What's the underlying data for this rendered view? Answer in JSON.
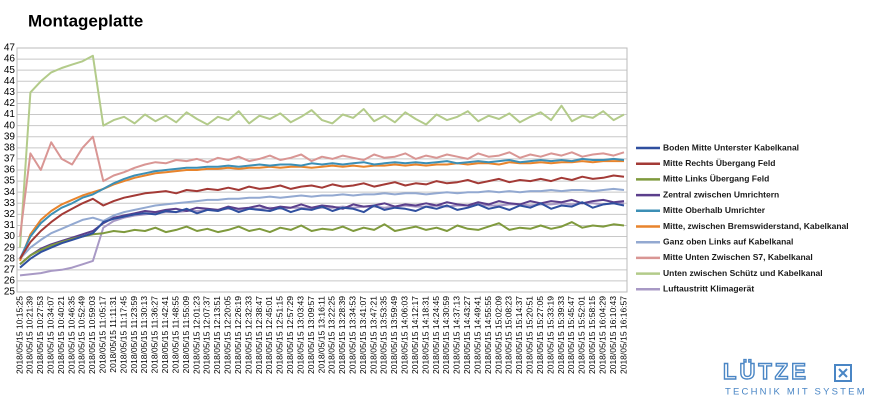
{
  "chart_data": {
    "type": "line",
    "title": "Montageplatte",
    "categories": [
      "2018/05/15 10:15:25",
      "2018/05/15 10:21:39",
      "2018/05/15 10:27:53",
      "2018/05/15 10:34:07",
      "2018/05/15 10:40:21",
      "2018/05/15 10:46:35",
      "2018/05/15 10:52:49",
      "2018/05/15 10:59:03",
      "2018/05/15 11:05:17",
      "2018/05/15 11:11:31",
      "2018/05/15 11:17:45",
      "2018/05/15 11:23:59",
      "2018/05/15 11:30:13",
      "2018/05/15 11:36:27",
      "2018/05/15 11:42:41",
      "2018/05/15 11:48:55",
      "2018/05/15 11:55:09",
      "2018/05/15 12:01:23",
      "2018/05/15 12:07:37",
      "2018/05/15 12:13:51",
      "2018/05/15 12:20:05",
      "2018/05/15 12:26:19",
      "2018/05/15 12:32:33",
      "2018/05/15 12:38:47",
      "2018/05/15 12:45:01",
      "2018/05/15 12:51:15",
      "2018/05/15 12:57:29",
      "2018/05/15 13:03:43",
      "2018/05/15 13:09:57",
      "2018/05/15 13:16:11",
      "2018/05/15 13:22:25",
      "2018/05/15 13:28:39",
      "2018/05/15 13:34:53",
      "2018/05/15 13:41:07",
      "2018/05/15 13:47:21",
      "2018/05/15 13:53:35",
      "2018/05/15 13:59:49",
      "2018/05/15 14:06:03",
      "2018/05/15 14:12:17",
      "2018/05/15 14:18:31",
      "2018/05/15 14:24:45",
      "2018/05/15 14:30:59",
      "2018/05/15 14:37:13",
      "2018/05/15 14:43:27",
      "2018/05/15 14:49:41",
      "2018/05/15 14:55:55",
      "2018/05/15 15:02:09",
      "2018/05/15 15:08:23",
      "2018/05/15 15:14:37",
      "2018/05/15 15:20:51",
      "2018/05/15 15:27:05",
      "2018/05/15 15:33:19",
      "2018/05/15 15:39:33",
      "2018/05/15 15:45:47",
      "2018/05/15 15:52:01",
      "2018/05/15 15:58:15",
      "2018/05/15 16:04:29",
      "2018/05/15 16:10:43",
      "2018/05/15 16:16:57"
    ],
    "series": [
      {
        "name": "Boden Mitte Unterster Kabelkanal",
        "color": "#2f4f9f",
        "values": [
          27.2,
          28.0,
          28.6,
          29.0,
          29.4,
          29.7,
          30.0,
          30.3,
          31.3,
          31.6,
          31.8,
          32.0,
          32.1,
          32.0,
          32.3,
          32.2,
          32.5,
          32.1,
          32.4,
          32.3,
          32.6,
          32.2,
          32.5,
          32.4,
          32.3,
          32.6,
          32.2,
          32.5,
          32.4,
          32.7,
          32.3,
          32.6,
          32.5,
          32.2,
          32.8,
          32.4,
          32.6,
          32.5,
          32.3,
          32.7,
          32.5,
          32.8,
          32.4,
          32.6,
          32.9,
          32.5,
          32.7,
          32.4,
          32.8,
          32.6,
          33.0,
          32.5,
          32.8,
          32.7,
          33.1,
          32.6,
          32.9,
          33.0,
          32.8
        ]
      },
      {
        "name": "Mitte Rechts Übergang  Feld",
        "color": "#a33a36",
        "values": [
          28.0,
          29.5,
          30.5,
          31.3,
          32.0,
          32.5,
          33.0,
          33.4,
          32.8,
          33.2,
          33.5,
          33.7,
          33.9,
          34.0,
          34.1,
          33.9,
          34.2,
          34.1,
          34.3,
          34.2,
          34.4,
          34.2,
          34.5,
          34.3,
          34.4,
          34.6,
          34.3,
          34.5,
          34.6,
          34.4,
          34.7,
          34.5,
          34.6,
          34.8,
          34.5,
          34.7,
          34.9,
          34.6,
          34.8,
          34.7,
          35.0,
          34.8,
          34.9,
          35.1,
          34.8,
          35.0,
          35.2,
          34.9,
          35.1,
          35.0,
          35.2,
          35.0,
          35.3,
          35.1,
          35.4,
          35.2,
          35.3,
          35.5,
          35.4
        ]
      },
      {
        "name": "Mitte Links Übergang Feld",
        "color": "#7f9a3d",
        "values": [
          27.5,
          28.3,
          28.8,
          29.2,
          29.5,
          29.8,
          30.0,
          30.2,
          30.3,
          30.5,
          30.4,
          30.6,
          30.5,
          30.8,
          30.4,
          30.6,
          30.9,
          30.5,
          30.7,
          30.4,
          30.6,
          30.9,
          30.5,
          30.7,
          30.4,
          30.8,
          30.6,
          31.0,
          30.5,
          30.7,
          30.6,
          30.9,
          30.5,
          30.8,
          30.6,
          31.1,
          30.5,
          30.7,
          30.9,
          30.6,
          30.8,
          30.5,
          31.0,
          30.7,
          30.6,
          30.9,
          31.2,
          30.6,
          30.8,
          30.7,
          31.0,
          30.7,
          30.9,
          31.3,
          30.8,
          31.0,
          30.9,
          31.1,
          31.0
        ]
      },
      {
        "name": "Zentral zwischen Umrichtern",
        "color": "#5b3f8c",
        "values": [
          27.5,
          28.3,
          28.9,
          29.3,
          29.6,
          29.9,
          30.2,
          30.5,
          31.2,
          31.7,
          31.9,
          32.1,
          32.3,
          32.2,
          32.4,
          32.5,
          32.3,
          32.6,
          32.5,
          32.4,
          32.7,
          32.5,
          32.6,
          32.8,
          32.5,
          32.7,
          32.6,
          32.9,
          32.6,
          32.8,
          32.7,
          32.5,
          32.9,
          32.7,
          32.8,
          33.0,
          32.7,
          32.9,
          32.8,
          33.0,
          32.8,
          33.1,
          32.9,
          32.8,
          33.1,
          32.9,
          33.2,
          33.0,
          32.9,
          33.2,
          33.0,
          33.2,
          33.1,
          33.3,
          33.0,
          33.2,
          33.3,
          33.1,
          33.2
        ]
      },
      {
        "name": "Mitte Oberhalb Umrichter",
        "color": "#3c8fb5",
        "values": [
          28.0,
          30.0,
          31.2,
          32.0,
          32.6,
          33.0,
          33.5,
          33.8,
          34.3,
          34.8,
          35.2,
          35.5,
          35.7,
          35.9,
          36.0,
          36.1,
          36.2,
          36.2,
          36.3,
          36.3,
          36.4,
          36.3,
          36.4,
          36.5,
          36.4,
          36.5,
          36.5,
          36.4,
          36.6,
          36.5,
          36.6,
          36.5,
          36.6,
          36.7,
          36.5,
          36.6,
          36.7,
          36.6,
          36.7,
          36.6,
          36.7,
          36.8,
          36.6,
          36.7,
          36.8,
          36.7,
          36.8,
          36.9,
          36.7,
          36.8,
          36.9,
          36.8,
          36.9,
          36.8,
          37.0,
          36.9,
          36.9,
          37.0,
          36.9
        ]
      },
      {
        "name": "Mitte, zwischen Bremswiderstand, Kabelkanal",
        "color": "#e8842c",
        "values": [
          27.8,
          30.2,
          31.5,
          32.3,
          32.9,
          33.3,
          33.7,
          34.0,
          34.3,
          34.7,
          35.0,
          35.3,
          35.5,
          35.7,
          35.8,
          35.9,
          36.0,
          36.0,
          36.1,
          36.1,
          36.2,
          36.1,
          36.2,
          36.2,
          36.3,
          36.2,
          36.3,
          36.3,
          36.2,
          36.3,
          36.4,
          36.3,
          36.4,
          36.3,
          36.4,
          36.4,
          36.5,
          36.4,
          36.5,
          36.4,
          36.5,
          36.5,
          36.6,
          36.5,
          36.6,
          36.6,
          36.5,
          36.7,
          36.6,
          36.6,
          36.7,
          36.6,
          36.7,
          36.7,
          36.8,
          36.7,
          36.8,
          36.8,
          36.8
        ]
      },
      {
        "name": "Ganz oben Links auf Kabelkanal",
        "color": "#93a9d1",
        "values": [
          28.0,
          29.0,
          29.7,
          30.3,
          30.7,
          31.1,
          31.5,
          31.7,
          31.4,
          31.9,
          32.2,
          32.4,
          32.6,
          32.8,
          32.9,
          33.0,
          33.1,
          33.2,
          33.3,
          33.3,
          33.4,
          33.4,
          33.5,
          33.5,
          33.6,
          33.5,
          33.6,
          33.7,
          33.6,
          33.7,
          33.7,
          33.8,
          33.7,
          33.8,
          33.8,
          33.9,
          33.8,
          33.9,
          33.9,
          33.8,
          33.9,
          34.0,
          33.9,
          34.0,
          34.0,
          34.1,
          34.0,
          34.1,
          34.0,
          34.1,
          34.1,
          34.2,
          34.1,
          34.2,
          34.2,
          34.1,
          34.2,
          34.3,
          34.2
        ]
      },
      {
        "name": "Mitte Unten Zwischen S7, Kabelkanal",
        "color": "#d99694",
        "values": [
          30.0,
          37.5,
          36.0,
          38.5,
          37.0,
          36.5,
          38.0,
          39.0,
          35.0,
          35.5,
          35.8,
          36.2,
          36.5,
          36.7,
          36.6,
          36.9,
          36.8,
          37.0,
          36.7,
          37.1,
          36.9,
          37.2,
          36.8,
          37.0,
          37.3,
          36.9,
          37.1,
          37.4,
          36.8,
          37.2,
          37.0,
          37.3,
          37.1,
          36.9,
          37.4,
          37.1,
          37.2,
          37.5,
          37.0,
          37.3,
          37.1,
          37.4,
          37.2,
          37.0,
          37.5,
          37.2,
          37.3,
          37.6,
          37.1,
          37.4,
          37.2,
          37.5,
          37.3,
          37.6,
          37.2,
          37.4,
          37.5,
          37.3,
          37.6
        ]
      },
      {
        "name": "Unten zwischen Schütz und Kabelkanal",
        "color": "#b3cb8a",
        "values": [
          29.0,
          43.0,
          44.0,
          44.8,
          45.2,
          45.5,
          45.8,
          46.3,
          40.0,
          40.5,
          40.8,
          40.2,
          41.0,
          40.4,
          40.9,
          40.3,
          41.2,
          40.6,
          40.1,
          40.8,
          40.5,
          41.3,
          40.2,
          40.9,
          40.6,
          41.1,
          40.3,
          40.8,
          41.4,
          40.5,
          40.2,
          41.0,
          40.7,
          41.5,
          40.4,
          40.9,
          40.3,
          41.2,
          40.6,
          40.1,
          41.0,
          40.5,
          40.8,
          41.3,
          40.4,
          40.9,
          40.6,
          41.1,
          40.3,
          40.8,
          41.2,
          40.5,
          41.8,
          40.4,
          40.9,
          40.7,
          41.3,
          40.5,
          41.0
        ]
      },
      {
        "name": "Luftaustritt Klimagerät",
        "color": "#a899c5",
        "values": [
          26.5,
          26.6,
          26.7,
          26.9,
          27.0,
          27.2,
          27.5,
          27.8,
          30.8,
          31.4,
          31.7,
          31.9,
          32.0,
          32.1,
          32.2,
          32.2,
          32.3,
          32.3,
          32.4,
          32.4,
          32.5,
          32.4,
          32.5,
          32.5,
          32.6,
          32.5,
          32.6,
          32.6,
          32.5,
          32.6,
          32.6,
          32.7,
          32.6,
          32.7,
          32.7,
          32.6,
          32.7,
          32.8,
          32.7,
          32.7,
          32.8,
          32.7,
          32.8,
          32.8,
          32.9,
          32.8,
          32.8,
          32.9,
          32.9,
          32.8,
          32.9,
          32.9,
          33.0,
          32.9,
          33.0,
          33.0,
          32.9,
          33.0,
          33.0
        ]
      }
    ],
    "ylim": [
      25,
      47
    ],
    "yticks": [
      25,
      26,
      27,
      28,
      29,
      30,
      31,
      32,
      33,
      34,
      35,
      36,
      37,
      38,
      39,
      40,
      41,
      42,
      43,
      44,
      45,
      46,
      47
    ],
    "grid": true,
    "legend": "right"
  },
  "logo": {
    "name": "LÜTZE",
    "tagline": "TECHNIK MIT SYSTEM"
  }
}
